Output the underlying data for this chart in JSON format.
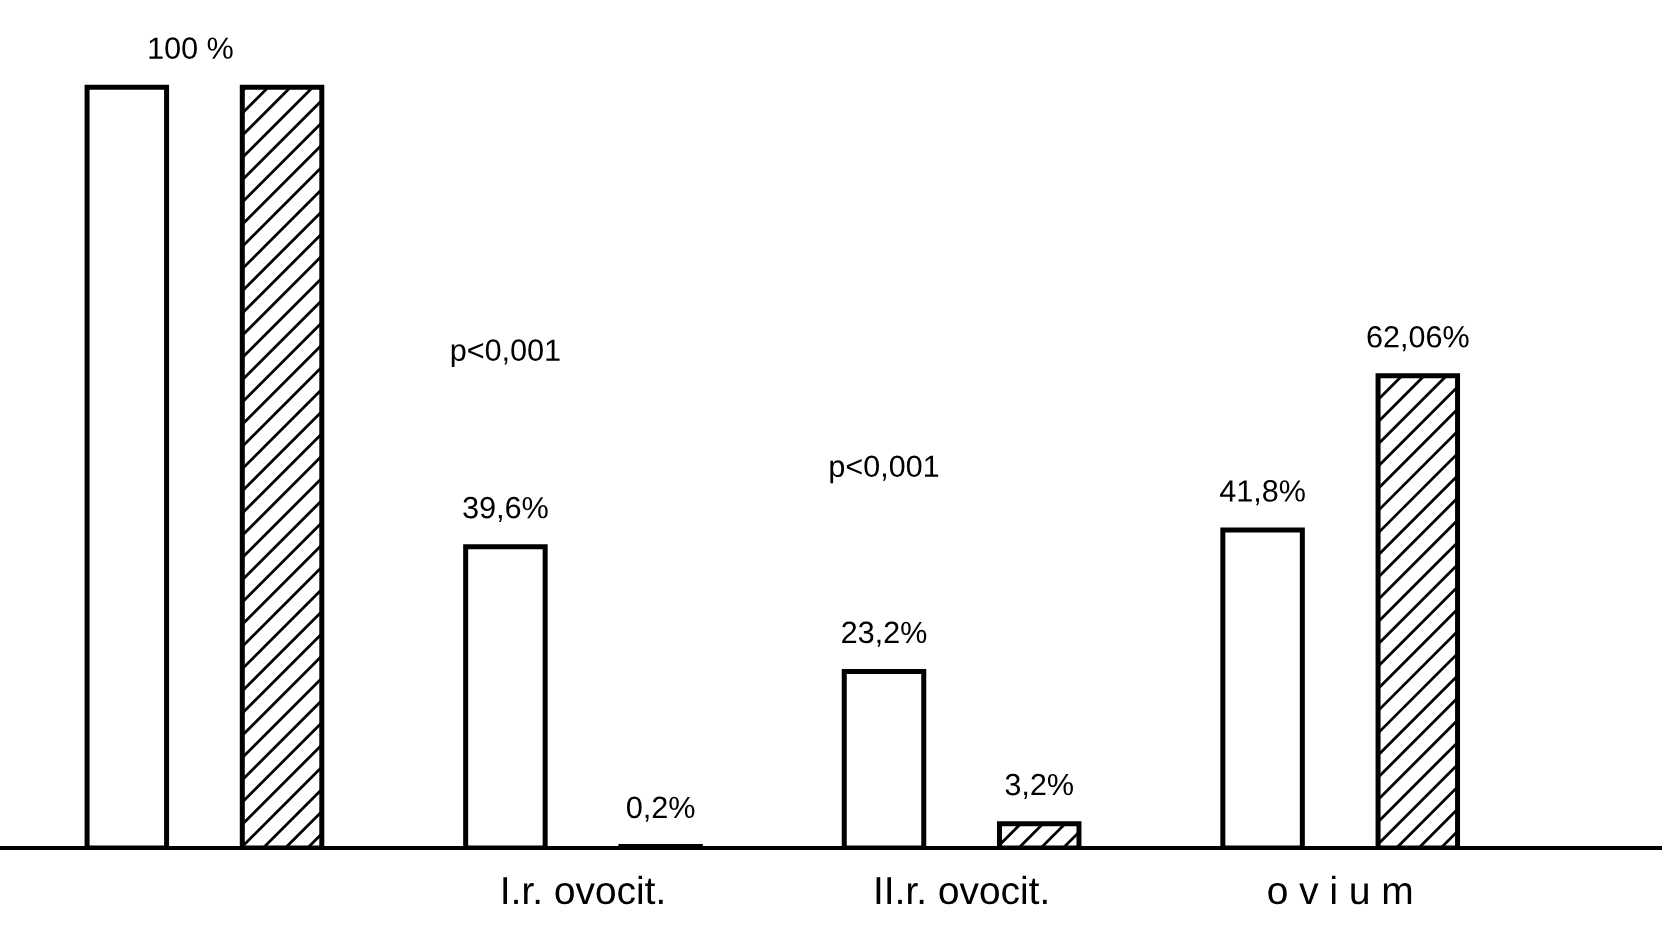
{
  "chart_data": {
    "type": "bar",
    "categories": [
      null,
      "I.r. ovocit.",
      "II.r. ovocit.",
      "o v i u m"
    ],
    "series": [
      {
        "color": "#ffffff",
        "values": [
          100,
          39.6,
          23.2,
          41.8
        ],
        "value_labels": [
          "100 %",
          "39,6%",
          "23,2%",
          "41,8%"
        ]
      },
      {
        "color": "#000000",
        "values": [
          100,
          0.2,
          3.2,
          62.06
        ],
        "value_labels": [
          null,
          "0,2%",
          "3,2%",
          "62,06%"
        ]
      }
    ],
    "annotations": [
      "p<0,001",
      "p<0,001"
    ],
    "grid": false,
    "legend": false
  }
}
